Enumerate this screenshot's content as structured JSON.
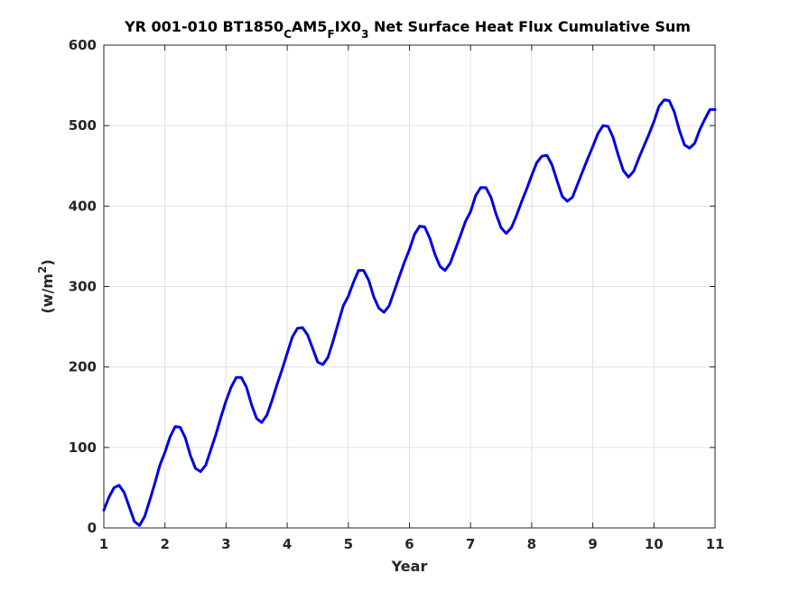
{
  "chart_data": {
    "type": "line",
    "title": {
      "parts": [
        {
          "text": "YR 001-010 BT1850",
          "sub": false
        },
        {
          "text": "C",
          "sub": true
        },
        {
          "text": "AM5",
          "sub": false
        },
        {
          "text": "F",
          "sub": true
        },
        {
          "text": "IX0",
          "sub": false
        },
        {
          "text": "3",
          "sub": true
        },
        {
          "text": " Net Surface Heat Flux  Cumulative Sum",
          "sub": false
        }
      ]
    },
    "xlabel": "Year",
    "ylabel": {
      "base": "(w/m",
      "sup": "2",
      "end": ")"
    },
    "xlim": [
      1,
      11
    ],
    "ylim": [
      0,
      600
    ],
    "xticks": [
      1,
      2,
      3,
      4,
      5,
      6,
      7,
      8,
      9,
      10,
      11
    ],
    "yticks": [
      0,
      100,
      200,
      300,
      400,
      500,
      600
    ],
    "grid": true,
    "series": [
      {
        "color": "#0000e6",
        "x": [
          1.0,
          1.083,
          1.167,
          1.25,
          1.333,
          1.417,
          1.5,
          1.583,
          1.667,
          1.75,
          1.833,
          1.917,
          2.0,
          2.083,
          2.167,
          2.25,
          2.333,
          2.417,
          2.5,
          2.583,
          2.667,
          2.75,
          2.833,
          2.917,
          3.0,
          3.083,
          3.167,
          3.25,
          3.333,
          3.417,
          3.5,
          3.583,
          3.667,
          3.75,
          3.833,
          3.917,
          4.0,
          4.083,
          4.167,
          4.25,
          4.333,
          4.417,
          4.5,
          4.583,
          4.667,
          4.75,
          4.833,
          4.917,
          5.0,
          5.083,
          5.167,
          5.25,
          5.333,
          5.417,
          5.5,
          5.583,
          5.667,
          5.75,
          5.833,
          5.917,
          6.0,
          6.083,
          6.167,
          6.25,
          6.333,
          6.417,
          6.5,
          6.583,
          6.667,
          6.75,
          6.833,
          6.917,
          7.0,
          7.083,
          7.167,
          7.25,
          7.333,
          7.417,
          7.5,
          7.583,
          7.667,
          7.75,
          7.833,
          7.917,
          8.0,
          8.083,
          8.167,
          8.25,
          8.333,
          8.417,
          8.5,
          8.583,
          8.667,
          8.75,
          8.833,
          8.917,
          9.0,
          9.083,
          9.167,
          9.25,
          9.333,
          9.417,
          9.5,
          9.583,
          9.667,
          9.75,
          9.833,
          9.917,
          10.0,
          10.083,
          10.167,
          10.25,
          10.333,
          10.417,
          10.5,
          10.583,
          10.667,
          10.75,
          10.833,
          10.917,
          11.0
        ],
        "y": [
          22,
          38,
          50,
          53,
          44,
          26,
          8,
          3,
          14,
          34,
          55,
          78,
          94,
          113,
          126,
          125,
          112,
          90,
          74,
          70,
          78,
          97,
          116,
          138,
          158,
          175,
          187,
          187,
          175,
          153,
          136,
          131,
          140,
          158,
          178,
          197,
          217,
          237,
          248,
          249,
          240,
          223,
          206,
          203,
          212,
          232,
          254,
          276,
          288,
          305,
          320,
          320,
          308,
          287,
          273,
          268,
          276,
          294,
          312,
          330,
          346,
          365,
          375,
          374,
          360,
          340,
          325,
          320,
          329,
          346,
          363,
          381,
          393,
          413,
          423,
          423,
          411,
          390,
          373,
          366,
          373,
          388,
          405,
          421,
          438,
          454,
          462,
          463,
          451,
          431,
          412,
          406,
          411,
          427,
          443,
          459,
          474,
          490,
          500,
          499,
          485,
          463,
          444,
          436,
          443,
          459,
          474,
          489,
          505,
          524,
          532,
          531,
          517,
          494,
          476,
          472,
          478,
          495,
          508,
          520,
          520
        ]
      }
    ]
  }
}
